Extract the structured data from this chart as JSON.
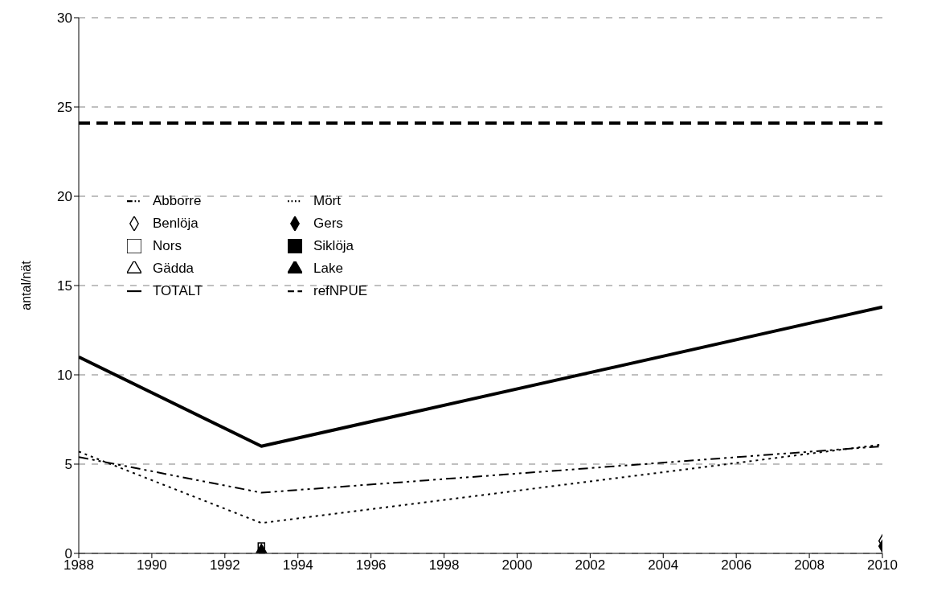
{
  "chart_data": {
    "type": "line",
    "ylabel": "antal/nät",
    "x": [
      1988,
      1993,
      2010
    ],
    "xlim": [
      1988,
      2010
    ],
    "xticks": [
      1988,
      1990,
      1992,
      1994,
      1996,
      1998,
      2000,
      2002,
      2004,
      2006,
      2008,
      2010
    ],
    "ylim": [
      0,
      30
    ],
    "yticks": [
      0,
      5,
      10,
      15,
      20,
      25,
      30
    ],
    "grid": "y",
    "legend": "left",
    "series": [
      {
        "name": "Abborre",
        "color": "#000000",
        "line_style": "dashed",
        "marker": "none",
        "values": [
          5.4,
          3.4,
          6.0
        ]
      },
      {
        "name": "Mört",
        "color": "#000000",
        "line_style": "dotted",
        "marker": "none",
        "values": [
          5.7,
          1.7,
          6.1
        ]
      },
      {
        "name": "Benlöja",
        "type": "scatter",
        "color": "#ffffff",
        "marker": "diamond",
        "values": [
          null,
          null,
          0.7
        ]
      },
      {
        "name": "Gers",
        "type": "scatter",
        "color": "#000000",
        "marker": "diamond",
        "values": [
          null,
          null,
          0.4
        ]
      },
      {
        "name": "Nors",
        "type": "scatter",
        "color": "#ffffff",
        "marker": "square",
        "values": [
          null,
          0.4,
          null
        ]
      },
      {
        "name": "Siklöja",
        "type": "scatter",
        "color": "#000000",
        "marker": "square",
        "values": [
          null,
          null,
          null
        ]
      },
      {
        "name": "Gädda",
        "type": "scatter",
        "color": "#ffffff",
        "marker": "triangle",
        "values": [
          null,
          null,
          null
        ]
      },
      {
        "name": "Lake",
        "type": "scatter",
        "color": "#000000",
        "marker": "triangle",
        "values": [
          null,
          0.2,
          null
        ]
      },
      {
        "name": "TOTALT",
        "color": "#000000",
        "line_style": "solid",
        "marker": "none",
        "values": [
          11.0,
          6.0,
          13.8
        ]
      },
      {
        "name": "refNPUE",
        "color": "#000000",
        "line_style": "dashed",
        "marker": "none",
        "values": [
          24.1,
          24.1,
          24.1
        ]
      }
    ]
  }
}
